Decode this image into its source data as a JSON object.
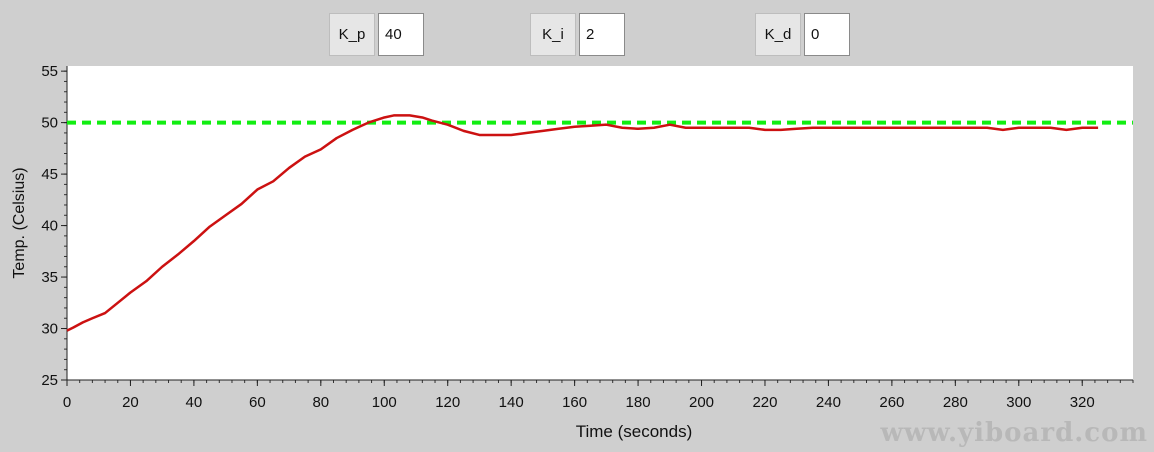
{
  "controls": [
    {
      "label": "K_p",
      "value": "40"
    },
    {
      "label": "K_i",
      "value": "2"
    },
    {
      "label": "K_d",
      "value": "0"
    }
  ],
  "watermark": "www.yiboard.com",
  "colors": {
    "background": "#cfcfcf",
    "plot_background": "#ffffff",
    "temperature_line": "#cc1111",
    "setpoint_line": "#11ee11"
  },
  "chart_data": {
    "type": "line",
    "xlabel": "Time (seconds)",
    "ylabel": "Temp. (Celsius)",
    "xlim": [
      0,
      336
    ],
    "ylim": [
      25,
      55.5
    ],
    "xticks": [
      0,
      20,
      40,
      60,
      80,
      100,
      120,
      140,
      160,
      180,
      200,
      220,
      240,
      260,
      280,
      300,
      320
    ],
    "yticks": [
      25,
      30,
      35,
      40,
      45,
      50,
      55
    ],
    "grid": false,
    "series": [
      {
        "style": "solid",
        "x": [
          0,
          2,
          5,
          8,
          12,
          16,
          20,
          25,
          30,
          35,
          40,
          45,
          50,
          55,
          60,
          65,
          70,
          75,
          80,
          85,
          90,
          95,
          100,
          103,
          108,
          112,
          115,
          120,
          125,
          130,
          135,
          140,
          145,
          150,
          155,
          160,
          165,
          170,
          175,
          180,
          185,
          190,
          195,
          200,
          205,
          210,
          215,
          220,
          225,
          230,
          235,
          240,
          260,
          280,
          290,
          295,
          300,
          305,
          310,
          315,
          320,
          325
        ],
        "y": [
          29.8,
          30.1,
          30.6,
          31.0,
          31.5,
          32.5,
          33.5,
          34.6,
          36.0,
          37.2,
          38.5,
          39.9,
          41.0,
          42.1,
          43.5,
          44.3,
          45.6,
          46.7,
          47.4,
          48.5,
          49.3,
          50.0,
          50.5,
          50.7,
          50.7,
          50.5,
          50.2,
          49.8,
          49.2,
          48.8,
          48.8,
          48.8,
          49.0,
          49.2,
          49.4,
          49.6,
          49.7,
          49.8,
          49.5,
          49.4,
          49.5,
          49.8,
          49.5,
          49.5,
          49.5,
          49.5,
          49.5,
          49.3,
          49.3,
          49.4,
          49.5,
          49.5,
          49.5,
          49.5,
          49.5,
          49.3,
          49.5,
          49.5,
          49.5,
          49.3,
          49.5,
          49.5
        ]
      },
      {
        "style": "dashed",
        "x": [
          0,
          336
        ],
        "y": [
          50,
          50
        ]
      }
    ]
  }
}
